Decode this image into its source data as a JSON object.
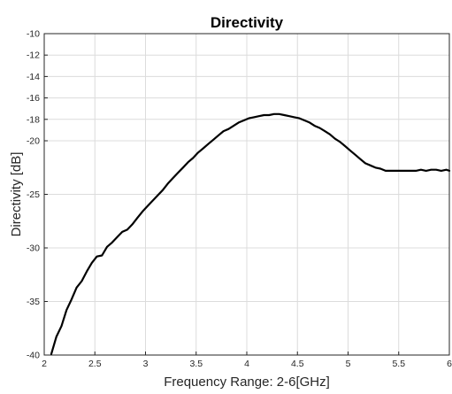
{
  "chart_data": {
    "type": "line",
    "title": "Directivity",
    "xlabel": "Frequency Range: 2-6[GHz]",
    "ylabel": "Directivity [dB]",
    "xlim": [
      2,
      6
    ],
    "ylim": [
      -40,
      -10
    ],
    "grid": true,
    "xticks": [
      "2",
      "2.5",
      "3",
      "3.5",
      "4",
      "4.5",
      "5",
      "5.5",
      "6"
    ],
    "yticks": [
      "-10",
      "-12",
      "-14",
      "-16",
      "-18",
      "-20",
      "-25",
      "-30",
      "-35",
      "-40"
    ],
    "series": [
      {
        "color": "#000000",
        "x": [
          2.07,
          2.12,
          2.17,
          2.22,
          2.27,
          2.32,
          2.37,
          2.42,
          2.47,
          2.52,
          2.57,
          2.62,
          2.67,
          2.72,
          2.77,
          2.82,
          2.87,
          2.92,
          2.97,
          3.02,
          3.07,
          3.12,
          3.17,
          3.22,
          3.27,
          3.32,
          3.37,
          3.42,
          3.47,
          3.52,
          3.57,
          3.62,
          3.67,
          3.72,
          3.77,
          3.82,
          3.87,
          3.92,
          3.97,
          4.02,
          4.07,
          4.12,
          4.17,
          4.22,
          4.27,
          4.32,
          4.37,
          4.42,
          4.47,
          4.52,
          4.57,
          4.62,
          4.67,
          4.72,
          4.77,
          4.82,
          4.87,
          4.92,
          4.97,
          5.02,
          5.07,
          5.12,
          5.17,
          5.22,
          5.27,
          5.32,
          5.37,
          5.42,
          5.47,
          5.52,
          5.57,
          5.62,
          5.67,
          5.72,
          5.77,
          5.82,
          5.87,
          5.92,
          5.97,
          6.0
        ],
        "y": [
          -39.9,
          -38.3,
          -37.3,
          -35.8,
          -34.8,
          -33.7,
          -33.1,
          -32.2,
          -31.4,
          -30.8,
          -30.7,
          -29.9,
          -29.5,
          -29.0,
          -28.5,
          -28.3,
          -27.8,
          -27.2,
          -26.6,
          -26.1,
          -25.6,
          -25.1,
          -24.6,
          -24.0,
          -23.5,
          -23.0,
          -22.5,
          -22.0,
          -21.6,
          -21.1,
          -20.7,
          -20.3,
          -19.9,
          -19.5,
          -19.1,
          -18.9,
          -18.6,
          -18.3,
          -18.1,
          -17.9,
          -17.8,
          -17.7,
          -17.6,
          -17.6,
          -17.5,
          -17.5,
          -17.6,
          -17.7,
          -17.8,
          -17.9,
          -18.1,
          -18.3,
          -18.6,
          -18.8,
          -19.1,
          -19.4,
          -19.8,
          -20.1,
          -20.5,
          -20.9,
          -21.3,
          -21.7,
          -22.1,
          -22.3,
          -22.5,
          -22.6,
          -22.8,
          -22.8,
          -22.8,
          -22.8,
          -22.8,
          -22.8,
          -22.8,
          -22.7,
          -22.8,
          -22.7,
          -22.7,
          -22.8,
          -22.7,
          -22.8
        ]
      }
    ]
  }
}
